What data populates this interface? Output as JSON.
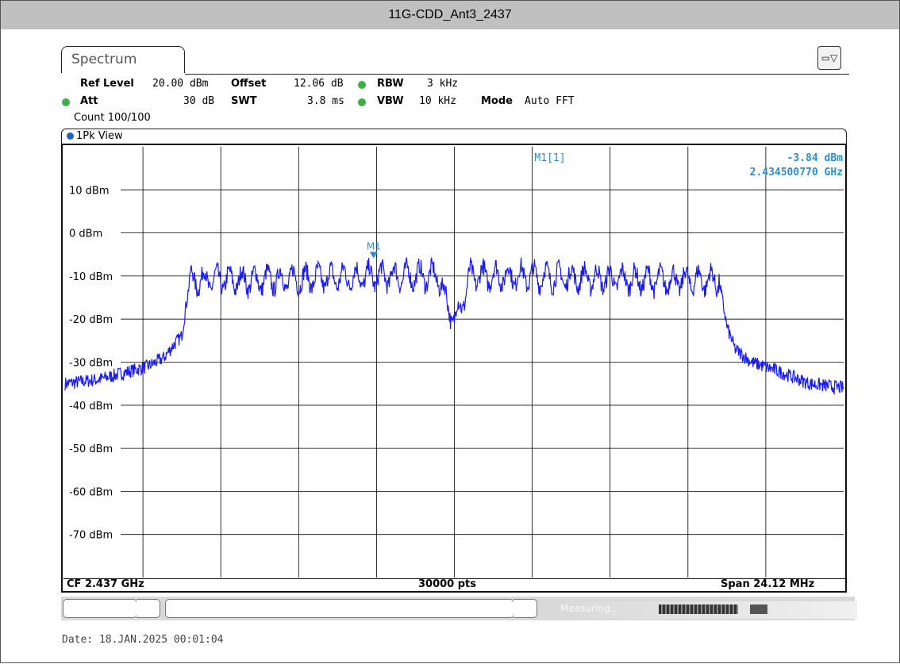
{
  "window_title": "11G-CDD_Ant3_2437",
  "tab_label": "Spectrum",
  "settings": {
    "ref_level_label": "Ref Level",
    "ref_level_value": "20.00 dBm",
    "offset_label": "Offset",
    "offset_value": "12.06 dB",
    "rbw_label": "RBW",
    "rbw_value": "3 kHz",
    "att_label": "Att",
    "att_value": "30 dB",
    "swt_label": "SWT",
    "swt_value": "3.8 ms",
    "vbw_label": "VBW",
    "vbw_value": "10 kHz",
    "mode_label": "Mode",
    "mode_value": "Auto FFT",
    "count": "Count 100/100"
  },
  "view_label": "1Pk View",
  "marker": {
    "name": "M1",
    "readout_label": "M1[1]",
    "readout_level": "-3.84 dBm",
    "readout_freq": "2.434500770 GHz"
  },
  "footer": {
    "cf": "CF 2.437 GHz",
    "pts": "30000 pts",
    "span": "Span 24.12 MHz"
  },
  "status": "Measuring...",
  "date": "Date: 18.JAN.2025  00:01:04",
  "colors": {
    "trace": "#1a1aff",
    "marker": "#2a90d0",
    "grid": "#000000"
  },
  "chart_data": {
    "type": "line",
    "xlabel": "",
    "ylabel": "",
    "x_range_mhz": [
      -12.06,
      12.06
    ],
    "ylim": [
      -80,
      20
    ],
    "y_ticks": [
      10,
      0,
      -10,
      -20,
      -30,
      -40,
      -50,
      -60,
      -70
    ],
    "y_tick_labels": [
      "10 dBm",
      "0 dBm",
      "-10 dBm",
      "-20 dBm",
      "-30 dBm",
      "-40 dBm",
      "-50 dBm",
      "-60 dBm",
      "-70 dBm"
    ],
    "grid": true,
    "series": [
      {
        "x_offset_mhz": [
          -12.06,
          -11.0,
          -10.0,
          -9.5,
          -9.0,
          -8.7,
          -8.45,
          -8.2,
          -6.0,
          -4.0,
          -2.0,
          -0.5,
          -0.2,
          0.0,
          0.2,
          0.5,
          2.0,
          4.0,
          6.0,
          8.0,
          8.2,
          8.45,
          8.7,
          9.2,
          10.0,
          11.0,
          12.06
        ],
        "y_dbm": [
          -35,
          -34,
          -32,
          -31,
          -29,
          -26,
          -24,
          -11,
          -11,
          -10.5,
          -10,
          -10,
          -17,
          -20,
          -17,
          -10,
          -10,
          -10.5,
          -11,
          -11,
          -11,
          -22,
          -27,
          -30,
          -32,
          -35,
          -36
        ]
      }
    ],
    "marker_x_offset_mhz": -2.5,
    "marker_y_dbm": -3.84
  }
}
